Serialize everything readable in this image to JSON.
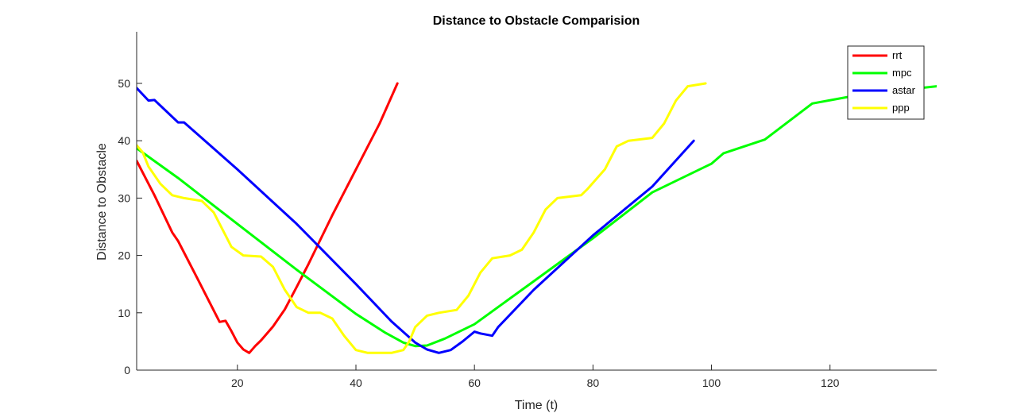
{
  "chart_data": {
    "type": "line",
    "title": "Distance to Obstacle Comparision",
    "xlabel": "Time (t)",
    "ylabel": "Distance to Obstacle",
    "xlim": [
      3,
      138
    ],
    "ylim": [
      0,
      59
    ],
    "xticks": [
      20,
      40,
      60,
      80,
      100,
      120
    ],
    "yticks": [
      0,
      10,
      20,
      30,
      40,
      50
    ],
    "grid": false,
    "legend_position": "top-right",
    "series": [
      {
        "name": "rrt",
        "color": "#ff0000",
        "points": [
          [
            3,
            36.5
          ],
          [
            6,
            30.5
          ],
          [
            9,
            24
          ],
          [
            10,
            22.5
          ],
          [
            13,
            16.5
          ],
          [
            17,
            8.4
          ],
          [
            18,
            8.6
          ],
          [
            19,
            6.8
          ],
          [
            20,
            4.8
          ],
          [
            21,
            3.6
          ],
          [
            22,
            3
          ],
          [
            23,
            4.2
          ],
          [
            24,
            5.2
          ],
          [
            26,
            7.6
          ],
          [
            28,
            10.6
          ],
          [
            30,
            14.5
          ],
          [
            32,
            18.5
          ],
          [
            36,
            27
          ],
          [
            40,
            35
          ],
          [
            44,
            43
          ],
          [
            47,
            50
          ]
        ]
      },
      {
        "name": "mpc",
        "color": "#00ff00",
        "points": [
          [
            3,
            38.7
          ],
          [
            10,
            33.5
          ],
          [
            20,
            25.5
          ],
          [
            30,
            17.5
          ],
          [
            40,
            9.8
          ],
          [
            45,
            6.5
          ],
          [
            48,
            4.8
          ],
          [
            50,
            4.2
          ],
          [
            52,
            4.3
          ],
          [
            55,
            5.5
          ],
          [
            60,
            8
          ],
          [
            70,
            15.5
          ],
          [
            80,
            23
          ],
          [
            90,
            31
          ],
          [
            100,
            36
          ],
          [
            102,
            37.8
          ],
          [
            109,
            40.2
          ],
          [
            117,
            46.5
          ],
          [
            125,
            48
          ],
          [
            130,
            48.6
          ],
          [
            138,
            49.5
          ]
        ]
      },
      {
        "name": "astar",
        "color": "#0000ff",
        "points": [
          [
            3,
            49.2
          ],
          [
            5,
            47
          ],
          [
            6,
            47.1
          ],
          [
            10,
            43.2
          ],
          [
            11,
            43.2
          ],
          [
            20,
            35
          ],
          [
            30,
            25.5
          ],
          [
            40,
            15
          ],
          [
            46,
            8.5
          ],
          [
            50,
            4.8
          ],
          [
            52,
            3.6
          ],
          [
            54,
            3
          ],
          [
            56,
            3.5
          ],
          [
            58,
            5
          ],
          [
            60,
            6.7
          ],
          [
            61,
            6.4
          ],
          [
            63,
            6
          ],
          [
            64,
            7.5
          ],
          [
            70,
            14
          ],
          [
            80,
            23.5
          ],
          [
            90,
            32
          ],
          [
            97,
            40
          ]
        ]
      },
      {
        "name": "ppp",
        "color": "#ffff00",
        "points": [
          [
            3,
            39.2
          ],
          [
            4,
            38
          ],
          [
            5,
            35.5
          ],
          [
            7,
            32.5
          ],
          [
            9,
            30.5
          ],
          [
            11,
            30
          ],
          [
            14,
            29.5
          ],
          [
            16,
            27.5
          ],
          [
            18,
            23.5
          ],
          [
            19,
            21.5
          ],
          [
            21,
            20
          ],
          [
            24,
            19.8
          ],
          [
            26,
            18
          ],
          [
            28,
            14
          ],
          [
            30,
            11
          ],
          [
            32,
            10
          ],
          [
            34,
            10
          ],
          [
            36,
            9
          ],
          [
            38,
            6
          ],
          [
            40,
            3.5
          ],
          [
            42,
            3
          ],
          [
            46,
            3
          ],
          [
            48,
            3.5
          ],
          [
            49,
            5
          ],
          [
            50,
            7.5
          ],
          [
            52,
            9.5
          ],
          [
            54,
            10
          ],
          [
            57,
            10.5
          ],
          [
            59,
            13
          ],
          [
            61,
            17
          ],
          [
            63,
            19.5
          ],
          [
            66,
            20
          ],
          [
            68,
            21
          ],
          [
            70,
            24
          ],
          [
            72,
            28
          ],
          [
            74,
            30
          ],
          [
            78,
            30.5
          ],
          [
            79,
            31.5
          ],
          [
            82,
            35
          ],
          [
            84,
            39
          ],
          [
            86,
            40
          ],
          [
            90,
            40.5
          ],
          [
            92,
            43
          ],
          [
            94,
            47
          ],
          [
            96,
            49.5
          ],
          [
            99,
            50
          ]
        ]
      }
    ]
  }
}
